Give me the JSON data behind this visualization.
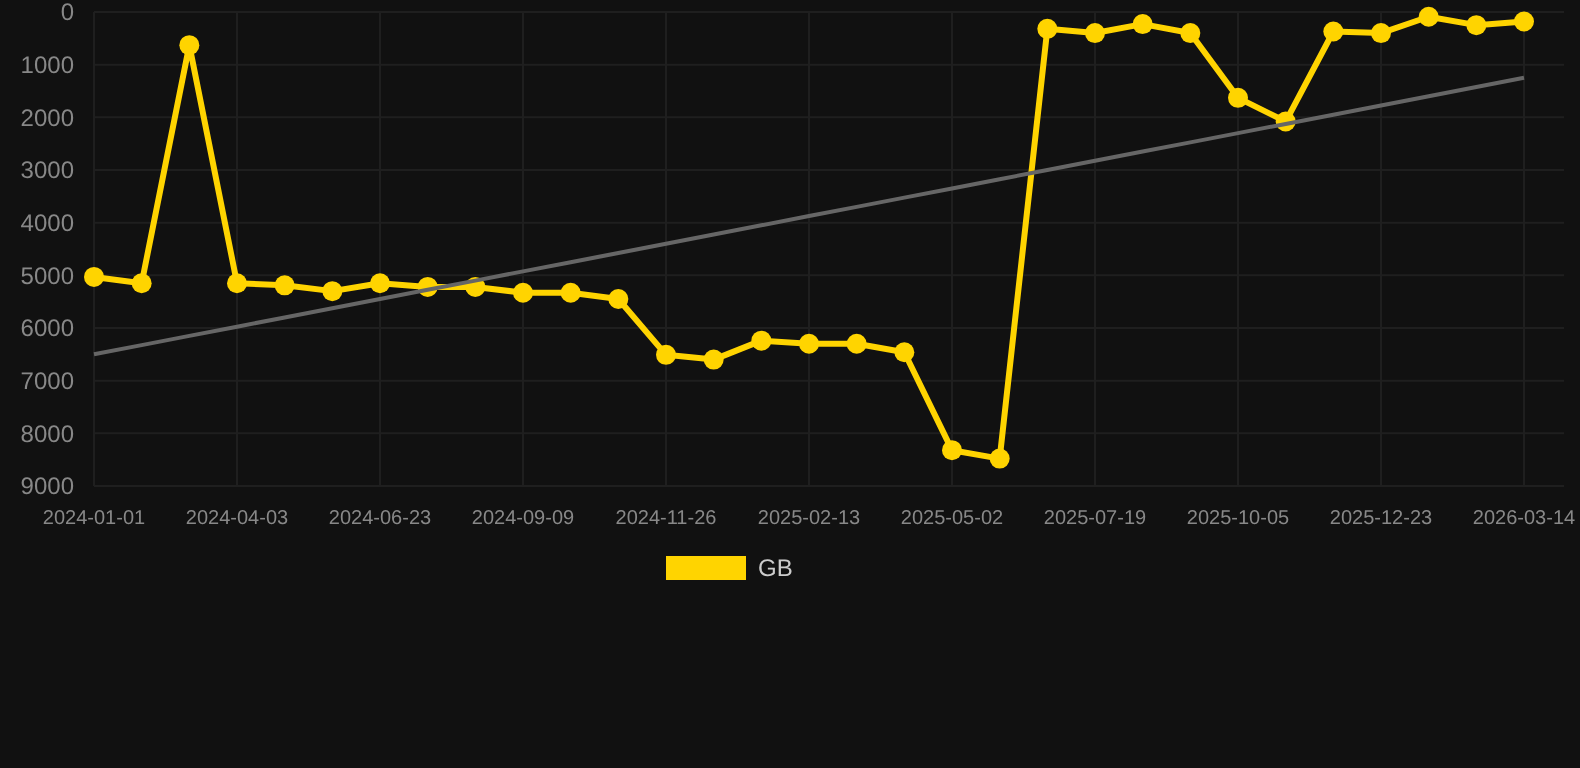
{
  "chart_data": {
    "type": "line",
    "categories": [
      "2024-01-01",
      null,
      null,
      "2024-04-03",
      null,
      null,
      "2024-06-23",
      null,
      null,
      "2024-09-09",
      null,
      null,
      "2024-11-26",
      null,
      null,
      "2025-02-13",
      null,
      null,
      "2025-05-02",
      null,
      null,
      "2025-07-19",
      null,
      null,
      "2025-10-05",
      null,
      null,
      "2025-12-23",
      null,
      null,
      "2026-03-14"
    ],
    "series": [
      {
        "name": "GB",
        "color": "#ffd400",
        "marker": "circle",
        "values": [
          5030,
          5150,
          630,
          5150,
          5190,
          5300,
          5150,
          5220,
          5220,
          5330,
          5330,
          5450,
          6510,
          6600,
          6240,
          6300,
          6300,
          6460,
          8320,
          8480,
          320,
          400,
          230,
          400,
          1630,
          2080,
          370,
          400,
          90,
          250,
          180
        ]
      },
      {
        "type": "line",
        "color": "#666666",
        "marker": "none",
        "values": [
          6500,
          6325,
          6150,
          5975,
          5800,
          5625,
          5450,
          5275,
          5100,
          4925,
          4750,
          4575,
          4400,
          4225,
          4050,
          3875,
          3700,
          3525,
          3350,
          3175,
          3000,
          2825,
          2650,
          2475,
          2300,
          2125,
          1950,
          1775,
          1600,
          1425,
          1250
        ]
      }
    ],
    "ylim": [
      9000,
      0
    ],
    "yticks": [
      0,
      1000,
      2000,
      3000,
      4000,
      5000,
      6000,
      7000,
      8000,
      9000
    ],
    "grid": true,
    "legend": "bottom"
  }
}
